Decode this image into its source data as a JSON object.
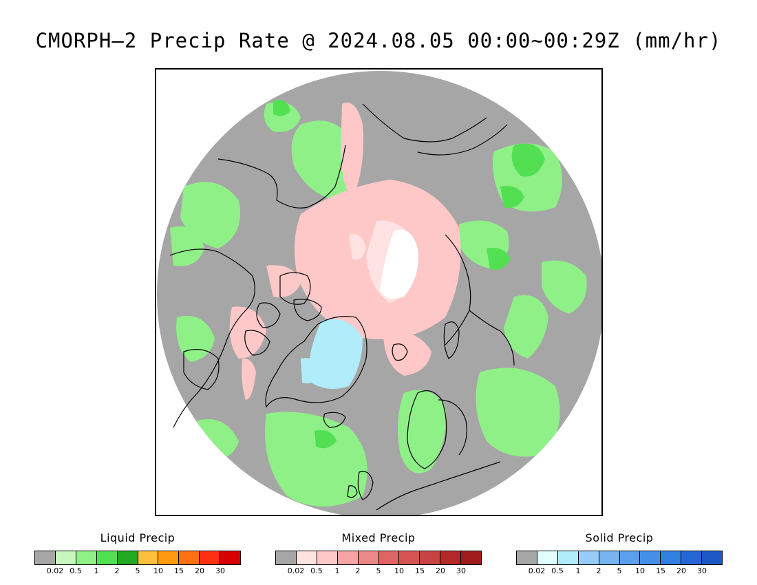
{
  "title": "CMORPH–2 Precip Rate @ 2024.08.05 00:00~00:29Z (mm/hr)",
  "map": {
    "projection": "north-polar-stereographic",
    "background_color": "#a6a6a6",
    "coast_color": "#000000"
  },
  "legends": [
    {
      "title": "Liquid Precip",
      "colors": [
        "#a6a6a6",
        "#c7f7bf",
        "#8ff088",
        "#52e052",
        "#22aa22",
        "#ffc040",
        "#ff9a10",
        "#ff7010",
        "#ff3010",
        "#d80000"
      ],
      "ticks": [
        "0.02",
        "0.5",
        "1",
        "2",
        "5",
        "10",
        "15",
        "20",
        "30"
      ]
    },
    {
      "title": "Mixed Precip",
      "colors": [
        "#a6a6a6",
        "#ffe2e2",
        "#ffc8c8",
        "#f4a4a4",
        "#ec8888",
        "#e06464",
        "#d45454",
        "#c84444",
        "#b42828",
        "#a01c1c"
      ],
      "ticks": [
        "0.02",
        "0.5",
        "1",
        "2",
        "5",
        "10",
        "15",
        "20",
        "30"
      ]
    },
    {
      "title": "Solid Precip",
      "colors": [
        "#a6a6a6",
        "#e2ffff",
        "#b0ecfa",
        "#98ccf8",
        "#78b4f0",
        "#5aa0ec",
        "#4490e8",
        "#2f80e0",
        "#2468d8",
        "#1c58c4"
      ],
      "ticks": [
        "0.02",
        "0.5",
        "1",
        "2",
        "5",
        "10",
        "15",
        "20",
        "30"
      ]
    }
  ]
}
